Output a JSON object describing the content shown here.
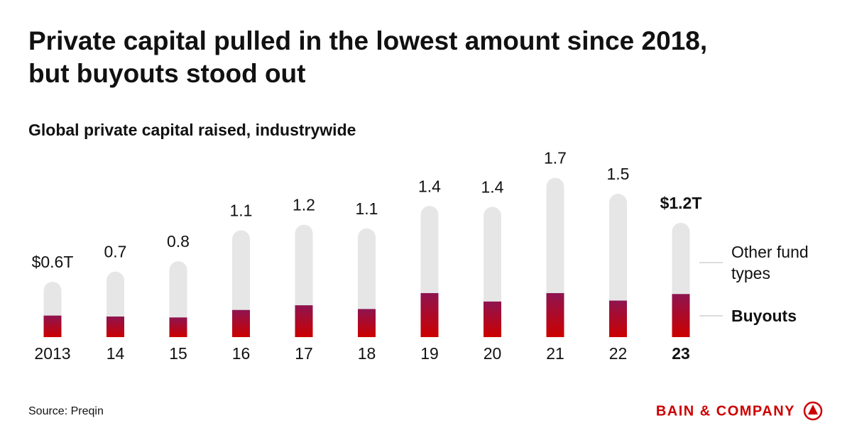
{
  "chart_data": {
    "type": "stacked_bar",
    "title": [
      "Private capital pulled in the lowest amount since 2018,",
      "but buyouts stood out"
    ],
    "subtitle": "Global private capital raised, industrywide",
    "categories": [
      "2013",
      "14",
      "15",
      "16",
      "17",
      "18",
      "19",
      "20",
      "21",
      "22",
      "23"
    ],
    "series": [
      {
        "name": "Buyouts",
        "color": "#cc0000",
        "values": [
          0.23,
          0.22,
          0.21,
          0.29,
          0.34,
          0.3,
          0.47,
          0.38,
          0.47,
          0.39,
          0.46
        ]
      },
      {
        "name": "Other fund types",
        "color": "#e6e6e6",
        "values": [
          0.36,
          0.48,
          0.6,
          0.85,
          0.86,
          0.86,
          0.93,
          1.01,
          1.23,
          1.14,
          0.76
        ]
      }
    ],
    "totals": {
      "values": [
        0.6,
        0.7,
        0.8,
        1.1,
        1.2,
        1.1,
        1.4,
        1.4,
        1.7,
        1.5,
        1.2
      ],
      "value_labels": [
        "$0.6T",
        "0.7",
        "0.8",
        "1.1",
        "1.2",
        "1.1",
        "1.4",
        "1.4",
        "1.7",
        "1.5",
        "$1.2T"
      ]
    },
    "source": "Source: Preqin",
    "brand": "BAIN & COMPANY"
  }
}
